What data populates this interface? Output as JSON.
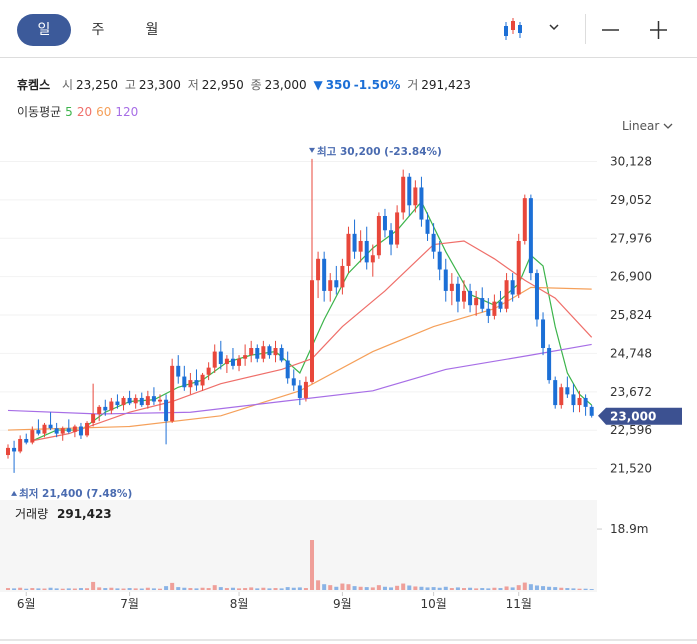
{
  "header": {
    "tabs": [
      "일",
      "주",
      "월"
    ],
    "name": "휴켐스",
    "open_label": "시",
    "open": "23,250",
    "high_label": "고",
    "high": "23,300",
    "low_label": "저",
    "low": "22,950",
    "close_label": "종",
    "close": "23,000",
    "change_mark": "▼",
    "change": "350",
    "change_pct": "-1.50%",
    "volume_label": "거",
    "volume": "291,423",
    "ma_label": "이동평균",
    "scale": "Linear"
  },
  "chart_data": {
    "type": "candlestick",
    "ylim": [
      20920,
      30730
    ],
    "yticks": [
      {
        "value": 30128,
        "label": "30,128"
      },
      {
        "value": 29052,
        "label": "29,052"
      },
      {
        "value": 27976,
        "label": "27,976"
      },
      {
        "value": 26900,
        "label": "26,900"
      },
      {
        "value": 25824,
        "label": "25,824"
      },
      {
        "value": 24748,
        "label": "24,748"
      },
      {
        "value": 23672,
        "label": "23,672"
      },
      {
        "value": 22596,
        "label": "22,596"
      },
      {
        "value": 21520,
        "label": "21,520"
      }
    ],
    "grid": true,
    "up_color": "#e8473b",
    "down_color": "#1c6fd6",
    "xticks": [
      {
        "value": 3,
        "label": "6월"
      },
      {
        "value": 20,
        "label": "7월"
      },
      {
        "value": 38,
        "label": "8월"
      },
      {
        "value": 55,
        "label": "9월"
      },
      {
        "value": 70,
        "label": "10월"
      },
      {
        "value": 84,
        "label": "11월"
      }
    ],
    "price_tag": {
      "value": 23000,
      "label": "23,000"
    },
    "annotations": [
      {
        "text": "최고 30,200 (-23.84%)",
        "x": 50,
        "value": 30200
      },
      {
        "text": "최저 21,400 (7.48%)",
        "x": 1,
        "value": 21400
      }
    ],
    "ohlc": [
      [
        21900,
        22200,
        21800,
        22100
      ],
      [
        22100,
        22300,
        21400,
        22000
      ],
      [
        22000,
        22450,
        21950,
        22350
      ],
      [
        22350,
        22500,
        22200,
        22250
      ],
      [
        22250,
        22700,
        22200,
        22600
      ],
      [
        22600,
        22900,
        22450,
        22500
      ],
      [
        22500,
        22800,
        22400,
        22750
      ],
      [
        22750,
        23100,
        22600,
        22650
      ],
      [
        22650,
        22800,
        22400,
        22500
      ],
      [
        22500,
        22700,
        22300,
        22650
      ],
      [
        22650,
        22900,
        22500,
        22550
      ],
      [
        22550,
        22750,
        22400,
        22700
      ],
      [
        22700,
        22800,
        22350,
        22450
      ],
      [
        22450,
        22850,
        22400,
        22800
      ],
      [
        22800,
        23900,
        22700,
        23050
      ],
      [
        23050,
        23300,
        22850,
        23250
      ],
      [
        23250,
        23450,
        23000,
        23150
      ],
      [
        23150,
        23500,
        23050,
        23400
      ],
      [
        23400,
        23600,
        23200,
        23300
      ],
      [
        23300,
        23550,
        23150,
        23500
      ],
      [
        23500,
        23700,
        23300,
        23350
      ],
      [
        23350,
        23600,
        23200,
        23500
      ],
      [
        23500,
        23650,
        23250,
        23300
      ],
      [
        23300,
        23700,
        23200,
        23550
      ],
      [
        23550,
        23800,
        23300,
        23400
      ],
      [
        23400,
        23600,
        23150,
        23450
      ],
      [
        23450,
        23600,
        22200,
        22850
      ],
      [
        22850,
        24600,
        22800,
        24400
      ],
      [
        24400,
        24700,
        23900,
        24100
      ],
      [
        24100,
        24400,
        23700,
        23800
      ],
      [
        23800,
        24200,
        23600,
        24000
      ],
      [
        24000,
        24300,
        23700,
        23850
      ],
      [
        23850,
        24200,
        23700,
        24150
      ],
      [
        24150,
        24500,
        24000,
        24350
      ],
      [
        24350,
        25000,
        24200,
        24800
      ],
      [
        24800,
        25100,
        24300,
        24450
      ],
      [
        24450,
        24700,
        24200,
        24600
      ],
      [
        24600,
        24900,
        24300,
        24400
      ],
      [
        24400,
        24700,
        24250,
        24600
      ],
      [
        24600,
        25000,
        24400,
        24700
      ],
      [
        24700,
        25100,
        24500,
        24900
      ],
      [
        24900,
        25000,
        24500,
        24600
      ],
      [
        24600,
        25100,
        24500,
        24950
      ],
      [
        24950,
        25000,
        24600,
        24700
      ],
      [
        24700,
        25100,
        24500,
        24900
      ],
      [
        24900,
        25000,
        24500,
        24550
      ],
      [
        24550,
        24800,
        23900,
        24050
      ],
      [
        24050,
        24300,
        23700,
        23850
      ],
      [
        23850,
        24000,
        23300,
        23500
      ],
      [
        23500,
        24100,
        23400,
        23950
      ],
      [
        23950,
        30200,
        23900,
        26800
      ],
      [
        26800,
        27600,
        26300,
        27400
      ],
      [
        27400,
        27600,
        26200,
        26500
      ],
      [
        26500,
        27000,
        26200,
        26800
      ],
      [
        26800,
        27200,
        26400,
        26600
      ],
      [
        26600,
        27400,
        26400,
        27200
      ],
      [
        27200,
        28300,
        27000,
        28100
      ],
      [
        28100,
        28500,
        27400,
        27600
      ],
      [
        27600,
        28200,
        27300,
        27900
      ],
      [
        27900,
        28300,
        27100,
        27300
      ],
      [
        27300,
        27800,
        26900,
        27500
      ],
      [
        27500,
        28700,
        27400,
        28600
      ],
      [
        28600,
        28800,
        28000,
        28200
      ],
      [
        28200,
        28400,
        27500,
        27800
      ],
      [
        27800,
        28900,
        27700,
        28700
      ],
      [
        28700,
        29900,
        28500,
        29700
      ],
      [
        29700,
        29800,
        28600,
        28900
      ],
      [
        28900,
        29600,
        28700,
        29400
      ],
      [
        29400,
        29700,
        28300,
        28500
      ],
      [
        28500,
        28700,
        27900,
        28100
      ],
      [
        28100,
        28400,
        27400,
        27600
      ],
      [
        27600,
        27900,
        26800,
        27100
      ],
      [
        27100,
        27400,
        26200,
        26500
      ],
      [
        26500,
        27000,
        26100,
        26700
      ],
      [
        26700,
        26900,
        25900,
        26200
      ],
      [
        26200,
        26800,
        26000,
        26500
      ],
      [
        26500,
        26700,
        25900,
        26100
      ],
      [
        26100,
        26500,
        25800,
        26300
      ],
      [
        26300,
        26600,
        25900,
        26000
      ],
      [
        26000,
        26300,
        25600,
        25800
      ],
      [
        25800,
        26400,
        25700,
        26200
      ],
      [
        26200,
        26500,
        25900,
        26000
      ],
      [
        26000,
        27000,
        25900,
        26800
      ],
      [
        26800,
        27000,
        26200,
        26400
      ],
      [
        26400,
        28100,
        26300,
        27900
      ],
      [
        27900,
        29200,
        27800,
        29100
      ],
      [
        29100,
        29200,
        26800,
        27000
      ],
      [
        27000,
        27100,
        25500,
        25700
      ],
      [
        25700,
        25900,
        24700,
        24900
      ],
      [
        24900,
        25000,
        23900,
        24000
      ],
      [
        24000,
        24100,
        23200,
        23300
      ],
      [
        23300,
        23900,
        23200,
        23800
      ],
      [
        23800,
        24100,
        23500,
        23600
      ],
      [
        23600,
        23900,
        23100,
        23300
      ],
      [
        23300,
        23700,
        23100,
        23500
      ],
      [
        23500,
        23600,
        23000,
        23250
      ],
      [
        23250,
        23300,
        22950,
        23000
      ]
    ],
    "ma": [
      {
        "name": "5",
        "color": "#3cb44b",
        "x": [
          4,
          8,
          12,
          16,
          20,
          24,
          28,
          32,
          36,
          40,
          44,
          48,
          52,
          56,
          60,
          64,
          68,
          72,
          76,
          80,
          84,
          86,
          88,
          90,
          92,
          94,
          96
        ],
        "values": [
          22300,
          22600,
          22600,
          23100,
          23400,
          23450,
          23800,
          24000,
          24500,
          24700,
          24800,
          24200,
          25700,
          27000,
          27700,
          28200,
          29000,
          27600,
          26400,
          26100,
          26700,
          27500,
          27200,
          25500,
          24200,
          23600,
          23300
        ]
      },
      {
        "name": "20",
        "color": "#ef6f6a",
        "x": [
          4,
          10,
          20,
          27,
          35,
          45,
          50,
          55,
          62,
          70,
          75,
          80,
          85,
          90,
          96
        ],
        "values": [
          22300,
          22500,
          23100,
          23400,
          23900,
          24300,
          24600,
          25500,
          26500,
          27800,
          27900,
          27400,
          26800,
          26300,
          25200
        ]
      },
      {
        "name": "60",
        "color": "#f5a05a",
        "x": [
          0,
          10,
          20,
          35,
          48,
          60,
          70,
          80,
          86,
          96
        ],
        "values": [
          22600,
          22650,
          22700,
          23000,
          23700,
          24800,
          25500,
          26000,
          26600,
          26550
        ]
      },
      {
        "name": "120",
        "color": "#a76ee6",
        "x": [
          0,
          15,
          30,
          45,
          60,
          72,
          86,
          96
        ],
        "values": [
          23150,
          23050,
          23100,
          23400,
          23700,
          24300,
          24700,
          25000
        ]
      }
    ],
    "volume_title": "거래량",
    "volume_value": "291,423",
    "vlim": [
      0,
      20000000
    ],
    "vticks": [
      {
        "value": 18900000,
        "label": "18.9m"
      }
    ],
    "volumes": [
      600000,
      500000,
      700000,
      400000,
      600000,
      500000,
      450000,
      700000,
      500000,
      400000,
      500000,
      450000,
      600000,
      550000,
      2500000,
      800000,
      600000,
      700000,
      500000,
      450000,
      600000,
      500000,
      450000,
      700000,
      500000,
      400000,
      1200000,
      2200000,
      900000,
      700000,
      600000,
      500000,
      700000,
      600000,
      1500000,
      900000,
      600000,
      700000,
      500000,
      600000,
      800000,
      500000,
      700000,
      500000,
      600000,
      500000,
      900000,
      700000,
      800000,
      600000,
      15500000,
      3000000,
      1800000,
      1500000,
      1000000,
      2000000,
      1800000,
      1200000,
      1000000,
      900000,
      800000,
      1500000,
      1000000,
      800000,
      1300000,
      2000000,
      1400000,
      1100000,
      1000000,
      800000,
      900000,
      700000,
      1000000,
      600000,
      800000,
      600000,
      700000,
      500000,
      600000,
      500000,
      700000,
      600000,
      1100000,
      800000,
      1500000,
      2300000,
      1800000,
      1400000,
      1200000,
      1000000,
      900000,
      700000,
      600000,
      500000,
      400000,
      400000,
      291423
    ]
  }
}
